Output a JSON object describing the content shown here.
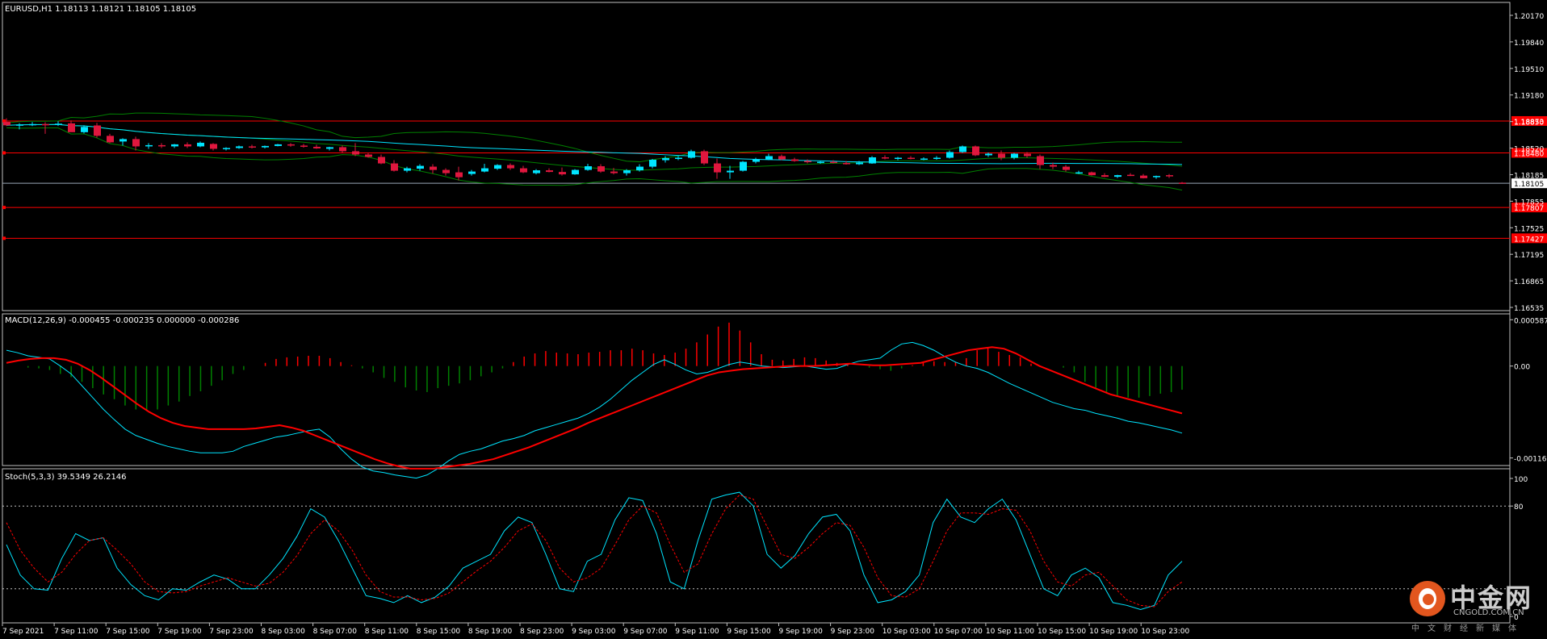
{
  "main_header": "EURUSD,H1  1.18113 1.18121 1.18105 1.18105",
  "macd_header": "MACD(12,26,9) -0.000455 -0.000235 0.000000 -0.000286",
  "stoch_header": "Stoch(5,3,3) 39.5349 26.2146",
  "colors": {
    "background": "#000000",
    "frame": "#c0c0c0",
    "bull_candle": "#00e5ff",
    "bear_candle": "#e0173e",
    "level_line": "#ff0000",
    "bollinger": "#008000",
    "ma_line": "#00e5ff",
    "macd_up": "#ff0000",
    "macd_down": "#008000",
    "signal_line": "#ff0000",
    "stoch_main": "#00e5ff",
    "stoch_signal": "#ff0000",
    "text": "#ffffff"
  },
  "price_axis": {
    "ticks": [
      "1.20170",
      "1.19840",
      "1.19510",
      "1.19180",
      "1.18850",
      "1.18520",
      "1.18185",
      "1.17855",
      "1.17525",
      "1.17195",
      "1.16865",
      "1.16535"
    ],
    "current_price": "1.18105",
    "level_labels": [
      "1.18873",
      "1.18480",
      "1.17807",
      "1.17427"
    ]
  },
  "macd_axis": {
    "ticks": [
      "0.000587",
      "0.00",
      "-0.001165"
    ]
  },
  "stoch_axis": {
    "ticks": [
      "100",
      "80",
      "0"
    ]
  },
  "time_axis": [
    "7 Sep 2021",
    "7 Sep 11:00",
    "7 Sep 15:00",
    "7 Sep 19:00",
    "7 Sep 23:00",
    "8 Sep 03:00",
    "8 Sep 07:00",
    "8 Sep 11:00",
    "8 Sep 15:00",
    "8 Sep 19:00",
    "8 Sep 23:00",
    "9 Sep 03:00",
    "9 Sep 07:00",
    "9 Sep 11:00",
    "9 Sep 15:00",
    "9 Sep 19:00",
    "9 Sep 23:00",
    "10 Sep 03:00",
    "10 Sep 07:00",
    "10 Sep 11:00",
    "10 Sep 15:00",
    "10 Sep 19:00",
    "10 Sep 23:00"
  ],
  "watermark": {
    "cn": "中金网",
    "en": "CNGOLD.COM.CN",
    "tagline": "中文财经新媒体"
  },
  "chart_data": {
    "type": "candlestick",
    "symbol": "EURUSD",
    "timeframe": "H1",
    "ylim": [
      1.16535,
      1.20335
    ],
    "levels": [
      1.18873,
      1.1848,
      1.17807,
      1.17427
    ],
    "candles": [
      {
        "o": 1.18862,
        "h": 1.18906,
        "l": 1.1881,
        "c": 1.1882
      },
      {
        "o": 1.1882,
        "h": 1.18845,
        "l": 1.1877,
        "c": 1.1883
      },
      {
        "o": 1.1883,
        "h": 1.1886,
        "l": 1.1881,
        "c": 1.18835
      },
      {
        "o": 1.18835,
        "h": 1.18858,
        "l": 1.18715,
        "c": 1.1883
      },
      {
        "o": 1.1883,
        "h": 1.1887,
        "l": 1.18812,
        "c": 1.1884
      },
      {
        "o": 1.18844,
        "h": 1.1888,
        "l": 1.1874,
        "c": 1.18735
      },
      {
        "o": 1.18735,
        "h": 1.1882,
        "l": 1.1872,
        "c": 1.188
      },
      {
        "o": 1.18818,
        "h": 1.1885,
        "l": 1.18668,
        "c": 1.1869
      },
      {
        "o": 1.1869,
        "h": 1.18715,
        "l": 1.186,
        "c": 1.1861
      },
      {
        "o": 1.1862,
        "h": 1.1866,
        "l": 1.1857,
        "c": 1.1865
      },
      {
        "o": 1.1865,
        "h": 1.1868,
        "l": 1.1851,
        "c": 1.1856
      },
      {
        "o": 1.1856,
        "h": 1.186,
        "l": 1.1853,
        "c": 1.18575
      },
      {
        "o": 1.18575,
        "h": 1.186,
        "l": 1.1854,
        "c": 1.1856
      },
      {
        "o": 1.1856,
        "h": 1.1859,
        "l": 1.1854,
        "c": 1.18585
      },
      {
        "o": 1.18585,
        "h": 1.1861,
        "l": 1.1854,
        "c": 1.1856
      },
      {
        "o": 1.1856,
        "h": 1.1862,
        "l": 1.1855,
        "c": 1.18605
      },
      {
        "o": 1.1859,
        "h": 1.186,
        "l": 1.1851,
        "c": 1.1853
      },
      {
        "o": 1.1853,
        "h": 1.1855,
        "l": 1.1851,
        "c": 1.1854
      },
      {
        "o": 1.1854,
        "h": 1.1857,
        "l": 1.1853,
        "c": 1.1856
      },
      {
        "o": 1.1856,
        "h": 1.1858,
        "l": 1.18535,
        "c": 1.18548
      },
      {
        "o": 1.18548,
        "h": 1.1857,
        "l": 1.18535,
        "c": 1.18565
      },
      {
        "o": 1.18565,
        "h": 1.1859,
        "l": 1.1856,
        "c": 1.18585
      },
      {
        "o": 1.18585,
        "h": 1.186,
        "l": 1.18555,
        "c": 1.1857
      },
      {
        "o": 1.1857,
        "h": 1.1859,
        "l": 1.18545,
        "c": 1.18555
      },
      {
        "o": 1.18555,
        "h": 1.1858,
        "l": 1.1853,
        "c": 1.18535
      },
      {
        "o": 1.1853,
        "h": 1.18555,
        "l": 1.1851,
        "c": 1.1855
      },
      {
        "o": 1.1855,
        "h": 1.1857,
        "l": 1.1848,
        "c": 1.185
      },
      {
        "o": 1.185,
        "h": 1.186,
        "l": 1.1844,
        "c": 1.1846
      },
      {
        "o": 1.1846,
        "h": 1.1848,
        "l": 1.1842,
        "c": 1.1843
      },
      {
        "o": 1.1843,
        "h": 1.1846,
        "l": 1.1834,
        "c": 1.1835
      },
      {
        "o": 1.1835,
        "h": 1.1839,
        "l": 1.1825,
        "c": 1.1826
      },
      {
        "o": 1.1826,
        "h": 1.1831,
        "l": 1.1824,
        "c": 1.1829
      },
      {
        "o": 1.18285,
        "h": 1.1834,
        "l": 1.1826,
        "c": 1.1832
      },
      {
        "o": 1.1831,
        "h": 1.1834,
        "l": 1.18225,
        "c": 1.1827
      },
      {
        "o": 1.1827,
        "h": 1.1829,
        "l": 1.182,
        "c": 1.1823
      },
      {
        "o": 1.1824,
        "h": 1.1831,
        "l": 1.1814,
        "c": 1.1818
      },
      {
        "o": 1.1822,
        "h": 1.1827,
        "l": 1.182,
        "c": 1.1825
      },
      {
        "o": 1.1825,
        "h": 1.18345,
        "l": 1.1824,
        "c": 1.1829
      },
      {
        "o": 1.18285,
        "h": 1.1834,
        "l": 1.1827,
        "c": 1.1833
      },
      {
        "o": 1.1833,
        "h": 1.1835,
        "l": 1.1827,
        "c": 1.1829
      },
      {
        "o": 1.1829,
        "h": 1.1832,
        "l": 1.1823,
        "c": 1.1824
      },
      {
        "o": 1.1823,
        "h": 1.1828,
        "l": 1.18215,
        "c": 1.18265
      },
      {
        "o": 1.18265,
        "h": 1.1829,
        "l": 1.1824,
        "c": 1.18245
      },
      {
        "o": 1.18245,
        "h": 1.183,
        "l": 1.182,
        "c": 1.18215
      },
      {
        "o": 1.18215,
        "h": 1.1828,
        "l": 1.1821,
        "c": 1.1827
      },
      {
        "o": 1.1827,
        "h": 1.18345,
        "l": 1.1826,
        "c": 1.18315
      },
      {
        "o": 1.18315,
        "h": 1.1834,
        "l": 1.18235,
        "c": 1.1825
      },
      {
        "o": 1.1825,
        "h": 1.18295,
        "l": 1.18215,
        "c": 1.1823
      },
      {
        "o": 1.1823,
        "h": 1.1828,
        "l": 1.182,
        "c": 1.18265
      },
      {
        "o": 1.18265,
        "h": 1.1834,
        "l": 1.1825,
        "c": 1.1831
      },
      {
        "o": 1.1831,
        "h": 1.18405,
        "l": 1.1829,
        "c": 1.18395
      },
      {
        "o": 1.1839,
        "h": 1.1844,
        "l": 1.1836,
        "c": 1.18415
      },
      {
        "o": 1.18415,
        "h": 1.1844,
        "l": 1.1839,
        "c": 1.1842
      },
      {
        "o": 1.1842,
        "h": 1.1852,
        "l": 1.1841,
        "c": 1.185
      },
      {
        "o": 1.185,
        "h": 1.1852,
        "l": 1.1833,
        "c": 1.1835
      },
      {
        "o": 1.1835,
        "h": 1.1841,
        "l": 1.1816,
        "c": 1.1824
      },
      {
        "o": 1.1824,
        "h": 1.1832,
        "l": 1.1816,
        "c": 1.1826
      },
      {
        "o": 1.1826,
        "h": 1.1838,
        "l": 1.1825,
        "c": 1.1837
      },
      {
        "o": 1.1837,
        "h": 1.1842,
        "l": 1.1835,
        "c": 1.184
      },
      {
        "o": 1.184,
        "h": 1.1847,
        "l": 1.1839,
        "c": 1.1844
      },
      {
        "o": 1.1844,
        "h": 1.1846,
        "l": 1.1839,
        "c": 1.184
      },
      {
        "o": 1.184,
        "h": 1.1842,
        "l": 1.1837,
        "c": 1.1838
      },
      {
        "o": 1.1838,
        "h": 1.184,
        "l": 1.1835,
        "c": 1.18365
      },
      {
        "o": 1.18365,
        "h": 1.18385,
        "l": 1.18345,
        "c": 1.1837
      },
      {
        "o": 1.1837,
        "h": 1.1839,
        "l": 1.1835,
        "c": 1.1836
      },
      {
        "o": 1.18355,
        "h": 1.1838,
        "l": 1.18335,
        "c": 1.1835
      },
      {
        "o": 1.1834,
        "h": 1.1838,
        "l": 1.1833,
        "c": 1.1836
      },
      {
        "o": 1.1835,
        "h": 1.1844,
        "l": 1.18345,
        "c": 1.18425
      },
      {
        "o": 1.18425,
        "h": 1.1845,
        "l": 1.184,
        "c": 1.1841
      },
      {
        "o": 1.1841,
        "h": 1.1843,
        "l": 1.1839,
        "c": 1.1842
      },
      {
        "o": 1.1842,
        "h": 1.1844,
        "l": 1.184,
        "c": 1.18405
      },
      {
        "o": 1.18405,
        "h": 1.18425,
        "l": 1.1839,
        "c": 1.1841
      },
      {
        "o": 1.1841,
        "h": 1.1844,
        "l": 1.18395,
        "c": 1.1842
      },
      {
        "o": 1.1842,
        "h": 1.1851,
        "l": 1.1841,
        "c": 1.1849
      },
      {
        "o": 1.1849,
        "h": 1.1857,
        "l": 1.1848,
        "c": 1.1856
      },
      {
        "o": 1.1856,
        "h": 1.1857,
        "l": 1.1844,
        "c": 1.1845
      },
      {
        "o": 1.1845,
        "h": 1.18485,
        "l": 1.1843,
        "c": 1.1847
      },
      {
        "o": 1.1847,
        "h": 1.1851,
        "l": 1.1839,
        "c": 1.1842
      },
      {
        "o": 1.1842,
        "h": 1.1848,
        "l": 1.184,
        "c": 1.1847
      },
      {
        "o": 1.1847,
        "h": 1.1849,
        "l": 1.1842,
        "c": 1.1844
      },
      {
        "o": 1.1844,
        "h": 1.1846,
        "l": 1.1828,
        "c": 1.1833
      },
      {
        "o": 1.1833,
        "h": 1.1836,
        "l": 1.1828,
        "c": 1.1831
      },
      {
        "o": 1.1831,
        "h": 1.1833,
        "l": 1.1825,
        "c": 1.1827
      },
      {
        "o": 1.1824,
        "h": 1.1826,
        "l": 1.1822,
        "c": 1.1824
      },
      {
        "o": 1.1824,
        "h": 1.1825,
        "l": 1.182,
        "c": 1.18205
      },
      {
        "o": 1.18205,
        "h": 1.1823,
        "l": 1.1818,
        "c": 1.18185
      },
      {
        "o": 1.18185,
        "h": 1.1821,
        "l": 1.1817,
        "c": 1.18205
      },
      {
        "o": 1.1821,
        "h": 1.1823,
        "l": 1.18195,
        "c": 1.182
      },
      {
        "o": 1.182,
        "h": 1.1822,
        "l": 1.18165,
        "c": 1.18168
      },
      {
        "o": 1.1818,
        "h": 1.182,
        "l": 1.1816,
        "c": 1.18195
      },
      {
        "o": 1.18205,
        "h": 1.1822,
        "l": 1.1817,
        "c": 1.1819
      },
      {
        "o": 1.18113,
        "h": 1.18121,
        "l": 1.18105,
        "c": 1.18105
      }
    ],
    "macd": {
      "ylim": [
        -0.00122,
        0.0006
      ],
      "histogram": [
        0.0,
        0.0,
        -2e-05,
        -3e-05,
        -5e-05,
        -0.0001,
        -0.00014,
        -0.0002,
        -0.00028,
        -0.00036,
        -0.00042,
        -0.0005,
        -0.00055,
        -0.00057,
        -0.00055,
        -0.0005,
        -0.00045,
        -0.00038,
        -0.00032,
        -0.00025,
        -0.00018,
        -0.0001,
        -5e-05,
        0.0,
        4e-05,
        9e-05,
        0.00011,
        0.00012,
        0.00013,
        0.00013,
        0.0001,
        5e-05,
        1e-05,
        -3e-05,
        -8e-05,
        -0.00015,
        -0.0002,
        -0.00027,
        -0.00031,
        -0.00033,
        -0.00028,
        -0.00025,
        -0.00022,
        -0.00018,
        -0.00013,
        -8e-05,
        -3e-05,
        5e-05,
        0.00012,
        0.00016,
        0.00019,
        0.00017,
        0.00016,
        0.00015,
        0.00017,
        0.00018,
        0.0002,
        0.0002,
        0.00022,
        0.0002,
        0.00016,
        0.00014,
        0.00017,
        0.00022,
        0.0003,
        0.0004,
        0.0005,
        0.00055,
        0.00045,
        0.0003,
        0.00015,
        8e-05,
        7e-05,
        9e-05,
        0.00011,
        0.0001,
        7e-05,
        4e-05,
        2e-05,
        0.0,
        -2e-05,
        -4e-05,
        -6e-05,
        -3e-05,
        1e-05,
        4e-05,
        6e-05,
        5e-05,
        5e-05,
        0.0001,
        0.0002,
        0.00023,
        0.00018,
        0.00014,
        0.00011,
        3e-05,
        0.0,
        0.0,
        -2e-05,
        -8e-05,
        -0.0002,
        -0.00028,
        -0.00034,
        -0.00038,
        -0.0004,
        -0.0004,
        -0.00038,
        -0.00035,
        -0.00033,
        -0.0003
      ],
      "macd_line": [
        0.0002,
        0.00017,
        0.00013,
        0.00011,
        9e-05,
        0.0,
        -0.0001,
        -0.00025,
        -0.0004,
        -0.00055,
        -0.00068,
        -0.0008,
        -0.00088,
        -0.00093,
        -0.00098,
        -0.00102,
        -0.00105,
        -0.00108,
        -0.0011,
        -0.0011,
        -0.0011,
        -0.00108,
        -0.00102,
        -0.00098,
        -0.00094,
        -0.0009,
        -0.00088,
        -0.00085,
        -0.00082,
        -0.0008,
        -0.0009,
        -0.00105,
        -0.00118,
        -0.00128,
        -0.00133,
        -0.00135,
        -0.00138,
        -0.0014,
        -0.00142,
        -0.00138,
        -0.0013,
        -0.0012,
        -0.00112,
        -0.00108,
        -0.00105,
        -0.001,
        -0.00095,
        -0.00092,
        -0.00088,
        -0.00082,
        -0.00078,
        -0.00074,
        -0.0007,
        -0.00066,
        -0.0006,
        -0.00052,
        -0.00042,
        -0.0003,
        -0.00018,
        -8e-05,
        2e-05,
        8e-05,
        2e-05,
        -5e-05,
        -0.0001,
        -8e-05,
        -3e-05,
        2e-05,
        5e-05,
        3e-05,
        0.0,
        -1e-05,
        -2e-05,
        -1e-05,
        0.0,
        -2e-05,
        -4e-05,
        -3e-05,
        2e-05,
        6e-05,
        8e-05,
        0.0001,
        0.0002,
        0.00028,
        0.0003,
        0.00026,
        0.0002,
        0.00012,
        5e-05,
        0.0,
        -3e-05,
        -8e-05,
        -0.00015,
        -0.00022,
        -0.00028,
        -0.00034,
        -0.0004,
        -0.00046,
        -0.0005,
        -0.00054,
        -0.00056,
        -0.0006,
        -0.00063,
        -0.00066,
        -0.0007,
        -0.00072,
        -0.00075,
        -0.00078,
        -0.00081,
        -0.00085
      ],
      "signal_line": [
        4e-05,
        7e-05,
        9e-05,
        0.0001,
        0.0001,
        8e-05,
        3e-05,
        -5e-05,
        -0.00015,
        -0.00026,
        -0.00037,
        -0.00048,
        -0.00058,
        -0.00066,
        -0.00072,
        -0.00076,
        -0.00078,
        -0.0008,
        -0.0008,
        -0.0008,
        -0.0008,
        -0.00079,
        -0.00077,
        -0.00075,
        -0.00078,
        -0.00082,
        -0.00088,
        -0.00094,
        -0.001,
        -0.00106,
        -0.00112,
        -0.00118,
        -0.00123,
        -0.00127,
        -0.0013,
        -0.0013,
        -0.0013,
        -0.00128,
        -0.00126,
        -0.00124,
        -0.00121,
        -0.00118,
        -0.00113,
        -0.00108,
        -0.00103,
        -0.00097,
        -0.00091,
        -0.00085,
        -0.00079,
        -0.00072,
        -0.00066,
        -0.0006,
        -0.00054,
        -0.00048,
        -0.00042,
        -0.00036,
        -0.0003,
        -0.00024,
        -0.00018,
        -0.00012,
        -8e-05,
        -6e-05,
        -4e-05,
        -3e-05,
        -2e-05,
        -1e-05,
        0.0,
        0.0,
        0.0,
        1e-05,
        2e-05,
        3e-05,
        2e-05,
        1e-05,
        1e-05,
        2e-05,
        3e-05,
        4e-05,
        8e-05,
        0.00012,
        0.00016,
        0.0002,
        0.00022,
        0.00024,
        0.00022,
        0.00016,
        8e-05,
        0.0,
        -6e-05,
        -0.00012,
        -0.00018,
        -0.00024,
        -0.0003,
        -0.00036,
        -0.0004,
        -0.00044,
        -0.00048,
        -0.00052,
        -0.00056,
        -0.0006
      ]
    },
    "stoch": {
      "ylim": [
        0,
        100
      ],
      "levels": [
        80,
        20
      ],
      "main": [
        52,
        30,
        20,
        19,
        42,
        60,
        55,
        57,
        35,
        23,
        15,
        12,
        20,
        19,
        25,
        30,
        27,
        20,
        20,
        30,
        42,
        58,
        78,
        72,
        55,
        35,
        15,
        13,
        10,
        15,
        10,
        14,
        22,
        35,
        40,
        45,
        62,
        72,
        68,
        45,
        20,
        18,
        40,
        45,
        70,
        86,
        84,
        60,
        25,
        20,
        55,
        85,
        88,
        90,
        80,
        45,
        35,
        44,
        60,
        72,
        74,
        62,
        30,
        10,
        12,
        18,
        30,
        68,
        85,
        72,
        68,
        78,
        85,
        70,
        45,
        20,
        15,
        30,
        35,
        28,
        10,
        8,
        5,
        8,
        30,
        40
      ],
      "signal": [
        68,
        48,
        35,
        25,
        32,
        45,
        55,
        57,
        48,
        38,
        25,
        18,
        17,
        18,
        22,
        25,
        28,
        25,
        22,
        24,
        32,
        44,
        60,
        70,
        62,
        48,
        30,
        18,
        14,
        14,
        12,
        13,
        17,
        25,
        33,
        40,
        50,
        62,
        67,
        55,
        35,
        25,
        28,
        35,
        52,
        70,
        80,
        75,
        52,
        32,
        38,
        60,
        78,
        88,
        85,
        65,
        45,
        42,
        50,
        60,
        68,
        66,
        50,
        28,
        15,
        14,
        20,
        40,
        62,
        75,
        75,
        74,
        78,
        77,
        62,
        40,
        25,
        22,
        30,
        32,
        22,
        12,
        8,
        7,
        18,
        25
      ]
    }
  }
}
